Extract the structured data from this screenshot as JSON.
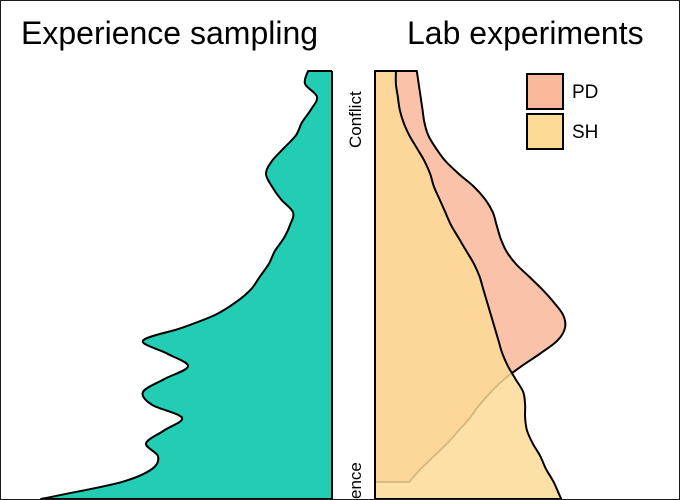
{
  "chart_data": [
    {
      "type": "area",
      "title": "Experience sampling",
      "y_axis_labels": {
        "top": "Conflict",
        "bottom": "ence"
      },
      "series": [
        {
          "color": "#22cdb3",
          "y": [
            0.0,
            0.03,
            0.06,
            0.09,
            0.12,
            0.15,
            0.18,
            0.21,
            0.24,
            0.27,
            0.3,
            0.33,
            0.36,
            0.39,
            0.42,
            0.45,
            0.48,
            0.51,
            0.54,
            0.57,
            0.6,
            0.63,
            0.66,
            0.69,
            0.72,
            0.75,
            0.78,
            0.81,
            0.84,
            0.87,
            0.9,
            0.93,
            0.96,
            0.99,
            1.0
          ],
          "density": [
            0.08,
            0.09,
            0.05,
            0.07,
            0.1,
            0.12,
            0.16,
            0.2,
            0.22,
            0.2,
            0.17,
            0.13,
            0.14,
            0.16,
            0.19,
            0.21,
            0.24,
            0.27,
            0.32,
            0.39,
            0.5,
            0.63,
            0.55,
            0.48,
            0.56,
            0.63,
            0.6,
            0.5,
            0.56,
            0.62,
            0.58,
            0.6,
            0.7,
            0.9,
            0.97
          ]
        }
      ]
    },
    {
      "type": "area",
      "title": "Lab experiments",
      "legend": {
        "position": "top-right",
        "entries": [
          {
            "name": "PD",
            "color": "#f9b89a"
          },
          {
            "name": "SH",
            "color": "#fddb97"
          }
        ]
      },
      "series": [
        {
          "name": "PD",
          "color": "#f9b89a",
          "y": [
            0.0,
            0.03,
            0.06,
            0.09,
            0.12,
            0.15,
            0.18,
            0.21,
            0.24,
            0.27,
            0.3,
            0.33,
            0.36,
            0.39,
            0.42,
            0.45,
            0.48,
            0.51,
            0.54,
            0.57,
            0.6,
            0.63,
            0.66,
            0.69,
            0.72,
            0.75,
            0.78,
            0.81,
            0.84,
            0.87,
            0.9,
            0.93,
            0.96
          ],
          "density": [
            0.22,
            0.23,
            0.24,
            0.25,
            0.26,
            0.28,
            0.32,
            0.37,
            0.44,
            0.52,
            0.58,
            0.62,
            0.64,
            0.66,
            0.69,
            0.74,
            0.81,
            0.88,
            0.94,
            0.99,
            1.0,
            0.96,
            0.87,
            0.77,
            0.68,
            0.61,
            0.55,
            0.5,
            0.44,
            0.38,
            0.31,
            0.24,
            0.18
          ]
        },
        {
          "name": "SH",
          "color": "#fddb97",
          "y": [
            0.0,
            0.03,
            0.06,
            0.09,
            0.12,
            0.15,
            0.18,
            0.21,
            0.24,
            0.27,
            0.3,
            0.33,
            0.36,
            0.39,
            0.42,
            0.45,
            0.48,
            0.51,
            0.54,
            0.57,
            0.6,
            0.63,
            0.66,
            0.69,
            0.72,
            0.75,
            0.78,
            0.81,
            0.84,
            0.87,
            0.9,
            0.93,
            0.96,
            0.99,
            1.0
          ],
          "density": [
            0.11,
            0.11,
            0.12,
            0.13,
            0.15,
            0.18,
            0.22,
            0.26,
            0.29,
            0.31,
            0.34,
            0.37,
            0.4,
            0.44,
            0.48,
            0.52,
            0.55,
            0.57,
            0.59,
            0.61,
            0.63,
            0.65,
            0.67,
            0.7,
            0.74,
            0.78,
            0.79,
            0.79,
            0.8,
            0.83,
            0.87,
            0.9,
            0.94,
            0.97,
            0.98
          ]
        }
      ]
    }
  ]
}
